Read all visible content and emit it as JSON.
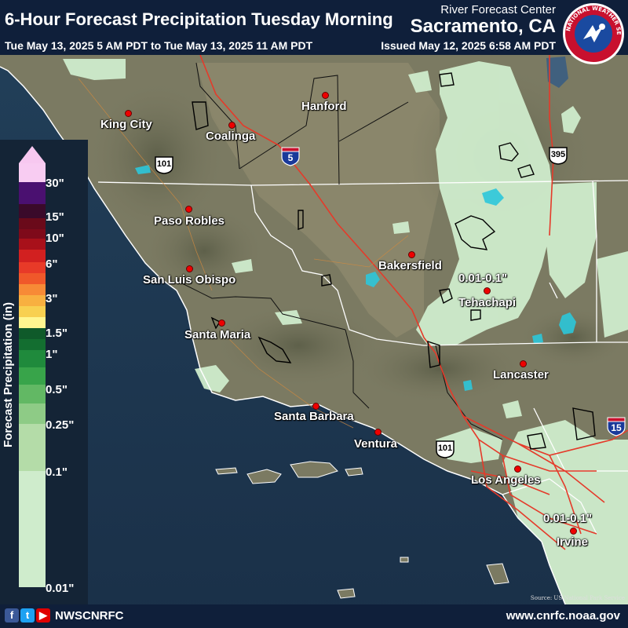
{
  "header": {
    "title": "6-Hour Forecast Precipitation Tuesday Morning",
    "time_range": "Tue May 13, 2025 5 AM PDT to Tue May 13, 2025 11 AM PDT",
    "rfc_label": "River Forecast Center",
    "rfc_city": "Sacramento, CA",
    "issued": "Issued May 12, 2025 6:58 AM PDT",
    "logo_text": "NATIONAL WEATHER SERVICE"
  },
  "legend": {
    "title": "Forecast Precipitation (in)",
    "ticks": [
      "30\"",
      "15\"",
      "10\"",
      "6\"",
      "3\"",
      "1.5\"",
      "1\"",
      "0.5\"",
      "0.25\"",
      "0.1\"",
      "0.01\""
    ]
  },
  "cities": [
    {
      "name": "King City"
    },
    {
      "name": "Coalinga"
    },
    {
      "name": "Hanford"
    },
    {
      "name": "Paso Robles"
    },
    {
      "name": "San Luis Obispo"
    },
    {
      "name": "Santa Maria"
    },
    {
      "name": "Bakersfield"
    },
    {
      "name": "Tehachapi"
    },
    {
      "name": "Lancaster"
    },
    {
      "name": "Santa Barbara"
    },
    {
      "name": "Ventura"
    },
    {
      "name": "Los Angeles"
    },
    {
      "name": "Irvine"
    }
  ],
  "forecast_labels": [
    "0.01-0.1\"",
    "0.01-0.1\""
  ],
  "highways": {
    "us101_a": "101",
    "us101_b": "101",
    "us395": "395",
    "i5": "5",
    "i15": "15"
  },
  "footer": {
    "handle": "NWSCNRFC",
    "website": "www.cnrfc.noaa.gov",
    "credit": "Source: US National Park Service",
    "social_icons": [
      "facebook-icon",
      "twitter-icon",
      "youtube-icon"
    ]
  },
  "colors": {
    "header_bg": "#0f1f3a",
    "ocean": "#1f3a52",
    "terrain": "#7a7a62",
    "precip_light": "#cfeccc",
    "roads": "#e53a2a",
    "city_dot": "#e00000"
  }
}
